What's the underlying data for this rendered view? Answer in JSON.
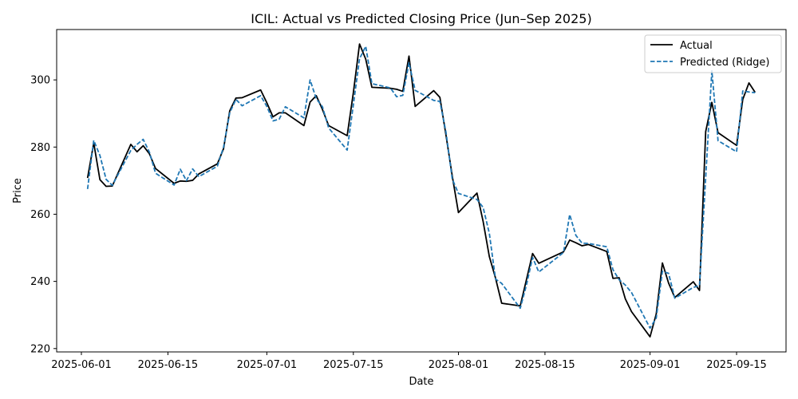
{
  "chart_data": {
    "type": "line",
    "title": "ICIL: Actual vs Predicted Closing Price (Jun–Sep 2025)",
    "xlabel": "Date",
    "ylabel": "Price",
    "x_tick_labels": [
      "2025-06-01",
      "2025-06-15",
      "2025-07-01",
      "2025-07-15",
      "2025-08-01",
      "2025-08-15",
      "2025-09-01",
      "2025-09-15"
    ],
    "y_ticks": [
      220,
      240,
      260,
      280,
      300
    ],
    "xlim": [
      "2025-05-28",
      "2025-09-23"
    ],
    "ylim": [
      219,
      315
    ],
    "grid": false,
    "legend_position": "top-right",
    "x": [
      "2025-06-02",
      "2025-06-03",
      "2025-06-04",
      "2025-06-05",
      "2025-06-06",
      "2025-06-09",
      "2025-06-10",
      "2025-06-11",
      "2025-06-12",
      "2025-06-13",
      "2025-06-16",
      "2025-06-17",
      "2025-06-18",
      "2025-06-19",
      "2025-06-20",
      "2025-06-23",
      "2025-06-24",
      "2025-06-25",
      "2025-06-26",
      "2025-06-27",
      "2025-06-30",
      "2025-07-01",
      "2025-07-02",
      "2025-07-03",
      "2025-07-04",
      "2025-07-07",
      "2025-07-08",
      "2025-07-09",
      "2025-07-10",
      "2025-07-11",
      "2025-07-14",
      "2025-07-15",
      "2025-07-16",
      "2025-07-17",
      "2025-07-18",
      "2025-07-21",
      "2025-07-22",
      "2025-07-23",
      "2025-07-24",
      "2025-07-25",
      "2025-07-28",
      "2025-07-29",
      "2025-07-30",
      "2025-07-31",
      "2025-08-01",
      "2025-08-04",
      "2025-08-05",
      "2025-08-06",
      "2025-08-07",
      "2025-08-08",
      "2025-08-11",
      "2025-08-12",
      "2025-08-13",
      "2025-08-14",
      "2025-08-18",
      "2025-08-19",
      "2025-08-20",
      "2025-08-21",
      "2025-08-22",
      "2025-08-25",
      "2025-08-26",
      "2025-08-27",
      "2025-08-28",
      "2025-08-29",
      "2025-09-01",
      "2025-09-02",
      "2025-09-03",
      "2025-09-04",
      "2025-09-05",
      "2025-09-08",
      "2025-09-09",
      "2025-09-10",
      "2025-09-11",
      "2025-09-12",
      "2025-09-15",
      "2025-09-16",
      "2025-09-17",
      "2025-09-18"
    ],
    "series": [
      {
        "name": "Actual",
        "color": "#000000",
        "style": "solid",
        "values": [
          270.8,
          281.2,
          270.3,
          268.3,
          268.4,
          280.8,
          278.6,
          280.4,
          278.0,
          273.6,
          269.2,
          269.9,
          269.8,
          270.1,
          272.0,
          275.0,
          279.5,
          290.8,
          294.6,
          294.7,
          297.0,
          293.2,
          289.0,
          290.2,
          290.2,
          286.4,
          293.4,
          295.3,
          291.2,
          286.4,
          283.4,
          296.2,
          310.7,
          306.2,
          297.8,
          297.5,
          297.2,
          296.6,
          307.1,
          292.1,
          296.8,
          294.8,
          283.4,
          271.4,
          260.5,
          266.3,
          257.8,
          247.4,
          241.0,
          233.5,
          232.7,
          240.5,
          248.3,
          245.4,
          248.8,
          252.3,
          251.5,
          250.6,
          251.0,
          248.9,
          240.9,
          241.1,
          234.8,
          231.0,
          223.5,
          230.3,
          245.5,
          239.5,
          235.2,
          239.9,
          237.3,
          284.6,
          293.3,
          284.3,
          280.5,
          294.2,
          299.1,
          296.3
        ]
      },
      {
        "name": "Predicted (Ridge)",
        "color": "#1f77b4",
        "style": "dashed",
        "values": [
          267.5,
          282.0,
          277.5,
          270.4,
          268.6,
          279.0,
          280.8,
          282.3,
          278.5,
          272.2,
          268.7,
          273.4,
          270.0,
          273.5,
          271.2,
          274.3,
          280.0,
          290.2,
          294.2,
          292.3,
          295.3,
          292.1,
          287.8,
          288.3,
          292.0,
          288.7,
          300.0,
          294.4,
          292.0,
          285.7,
          279.1,
          292.6,
          306.3,
          310.0,
          298.9,
          297.6,
          295.0,
          295.4,
          305.1,
          296.9,
          293.9,
          293.6,
          284.3,
          270.5,
          266.2,
          264.4,
          262.0,
          254.3,
          240.7,
          239.4,
          232.0,
          238.9,
          247.1,
          242.8,
          248.6,
          259.9,
          253.7,
          251.4,
          251.3,
          250.3,
          243.5,
          240.5,
          238.9,
          236.7,
          226.1,
          229.1,
          243.0,
          242.4,
          235.0,
          238.2,
          238.8,
          270.9,
          302.7,
          281.9,
          278.6,
          296.7,
          296.4,
          296.2
        ]
      }
    ]
  }
}
